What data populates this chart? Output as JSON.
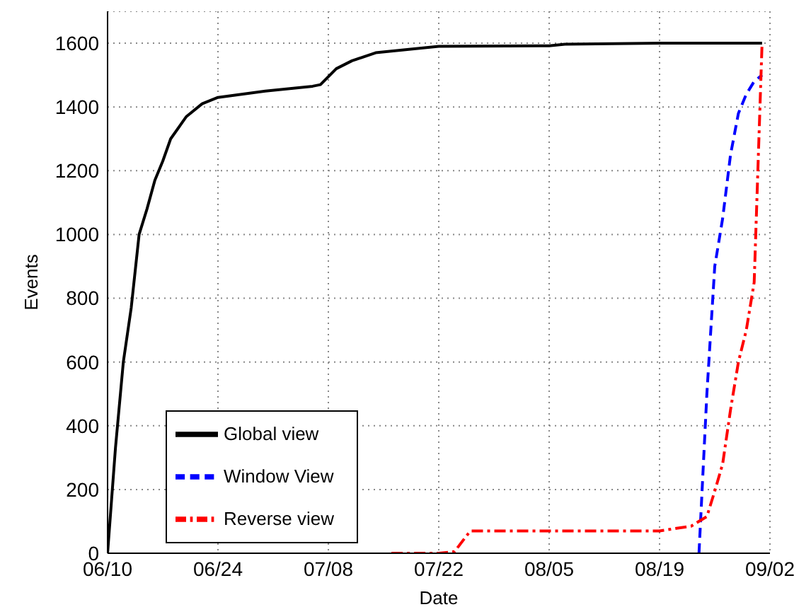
{
  "chart_data": {
    "type": "line",
    "xlabel": "Date",
    "ylabel": "Events",
    "xlim": [
      "--06-10",
      "--09-02"
    ],
    "xticks": [
      {
        "value": "--06-10",
        "label": "06/10"
      },
      {
        "value": "--06-24",
        "label": "06/24"
      },
      {
        "value": "--07-08",
        "label": "07/08"
      },
      {
        "value": "--07-22",
        "label": "07/22"
      },
      {
        "value": "--08-05",
        "label": "08/05"
      },
      {
        "value": "--08-19",
        "label": "08/19"
      },
      {
        "value": "--09-02",
        "label": "09/02"
      }
    ],
    "ylim": [
      0,
      1700
    ],
    "yticks": [
      0,
      200,
      400,
      600,
      800,
      1000,
      1200,
      1400,
      1600
    ],
    "grid": true,
    "legend": "bottom left",
    "marker": "none",
    "series": [
      {
        "name": "Global view",
        "color": "#000000",
        "line_style": "solid",
        "x": [
          "--06-10",
          "--06-11",
          "--06-12",
          "--06-13",
          "--06-14",
          "--06-15",
          "--06-16",
          "--06-17",
          "--06-18",
          "--06-20",
          "--06-22",
          "--06-24",
          "--06-30",
          "--07-06",
          "--07-07",
          "--07-09",
          "--07-11",
          "--07-14",
          "--07-18",
          "--07-22",
          "--08-05",
          "--08-07",
          "--08-19",
          "--09-01"
        ],
        "values": [
          0,
          330,
          600,
          770,
          1000,
          1080,
          1170,
          1230,
          1300,
          1370,
          1410,
          1430,
          1450,
          1465,
          1470,
          1520,
          1545,
          1570,
          1580,
          1590,
          1592,
          1597,
          1600,
          1600
        ]
      },
      {
        "name": "Window View",
        "color": "#0000ff",
        "line_style": "dashed",
        "x": [
          "--08-24",
          "--08-25",
          "--08-26",
          "--08-27",
          "--08-28",
          "--08-29",
          "--08-30",
          "--08-31",
          "--09-01"
        ],
        "values": [
          0,
          500,
          900,
          1050,
          1250,
          1380,
          1440,
          1480,
          1500
        ]
      },
      {
        "name": "Reverse view",
        "color": "#ff0000",
        "line_style": "dashdot",
        "x": [
          "--07-16",
          "--07-22",
          "--07-24",
          "--07-26",
          "--08-19",
          "--08-23",
          "--08-25",
          "--08-26",
          "--08-27",
          "--08-28",
          "--08-29",
          "--08-30",
          "--08-31",
          "--09-01"
        ],
        "values": [
          0,
          0,
          5,
          70,
          70,
          85,
          115,
          195,
          280,
          450,
          600,
          700,
          850,
          1600
        ]
      }
    ]
  }
}
